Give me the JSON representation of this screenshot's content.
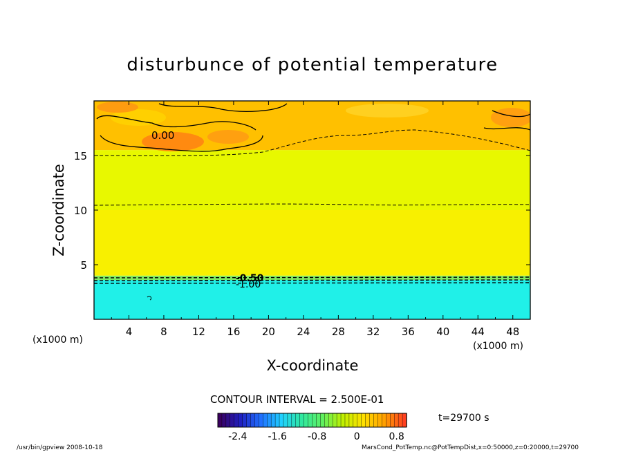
{
  "chart_data": {
    "type": "heatmap",
    "title": "disturbunce of potential temperature",
    "xlabel": "X-coordinate",
    "ylabel": "Z-coordinate",
    "x_unit": "(x1000 m)",
    "y_unit": "(x1000 m)",
    "xlim": [
      0,
      50
    ],
    "ylim": [
      0,
      20
    ],
    "x_ticks": [
      "4",
      "8",
      "12",
      "16",
      "20",
      "24",
      "28",
      "32",
      "36",
      "40",
      "44",
      "48"
    ],
    "y_ticks": [
      "5",
      "10",
      "15"
    ],
    "contour_interval_text": "CONTOUR INTERVAL = 2.500E-01",
    "time_text": "t=29700 s",
    "contour_labels": [
      "0.00",
      "-0.50",
      "-1.00"
    ],
    "layers": [
      {
        "z_from": 0.0,
        "z_to": 3.6,
        "value": -1.2,
        "color": "#20f0e8"
      },
      {
        "z_from": 3.6,
        "z_to": 4.0,
        "value": -0.6,
        "color": "#7fe860"
      },
      {
        "z_from": 4.0,
        "z_to": 10.0,
        "value": 0.15,
        "color": "#f8f000"
      },
      {
        "z_from": 10.0,
        "z_to": 15.5,
        "value": 0.05,
        "color": "#e8f800"
      },
      {
        "z_from": 15.5,
        "z_to": 20.0,
        "value": 0.4,
        "color": "#ffc000"
      }
    ],
    "colorbar": {
      "ticks": [
        "-2.4",
        "-1.6",
        "-0.8",
        "0",
        "0.8"
      ],
      "range": [
        -2.8,
        1.0
      ],
      "colors": [
        "#3a0060",
        "#2020c0",
        "#2070ff",
        "#20d0ff",
        "#30e8a0",
        "#60f060",
        "#c0f000",
        "#ffe000",
        "#ffa000",
        "#ff4020"
      ]
    }
  },
  "footer": {
    "left": "/usr/bin/gpview   2008-10-18",
    "right": "MarsCond_PotTemp.nc@PotTempDist,x=0:50000,z=0:20000,t=29700"
  }
}
